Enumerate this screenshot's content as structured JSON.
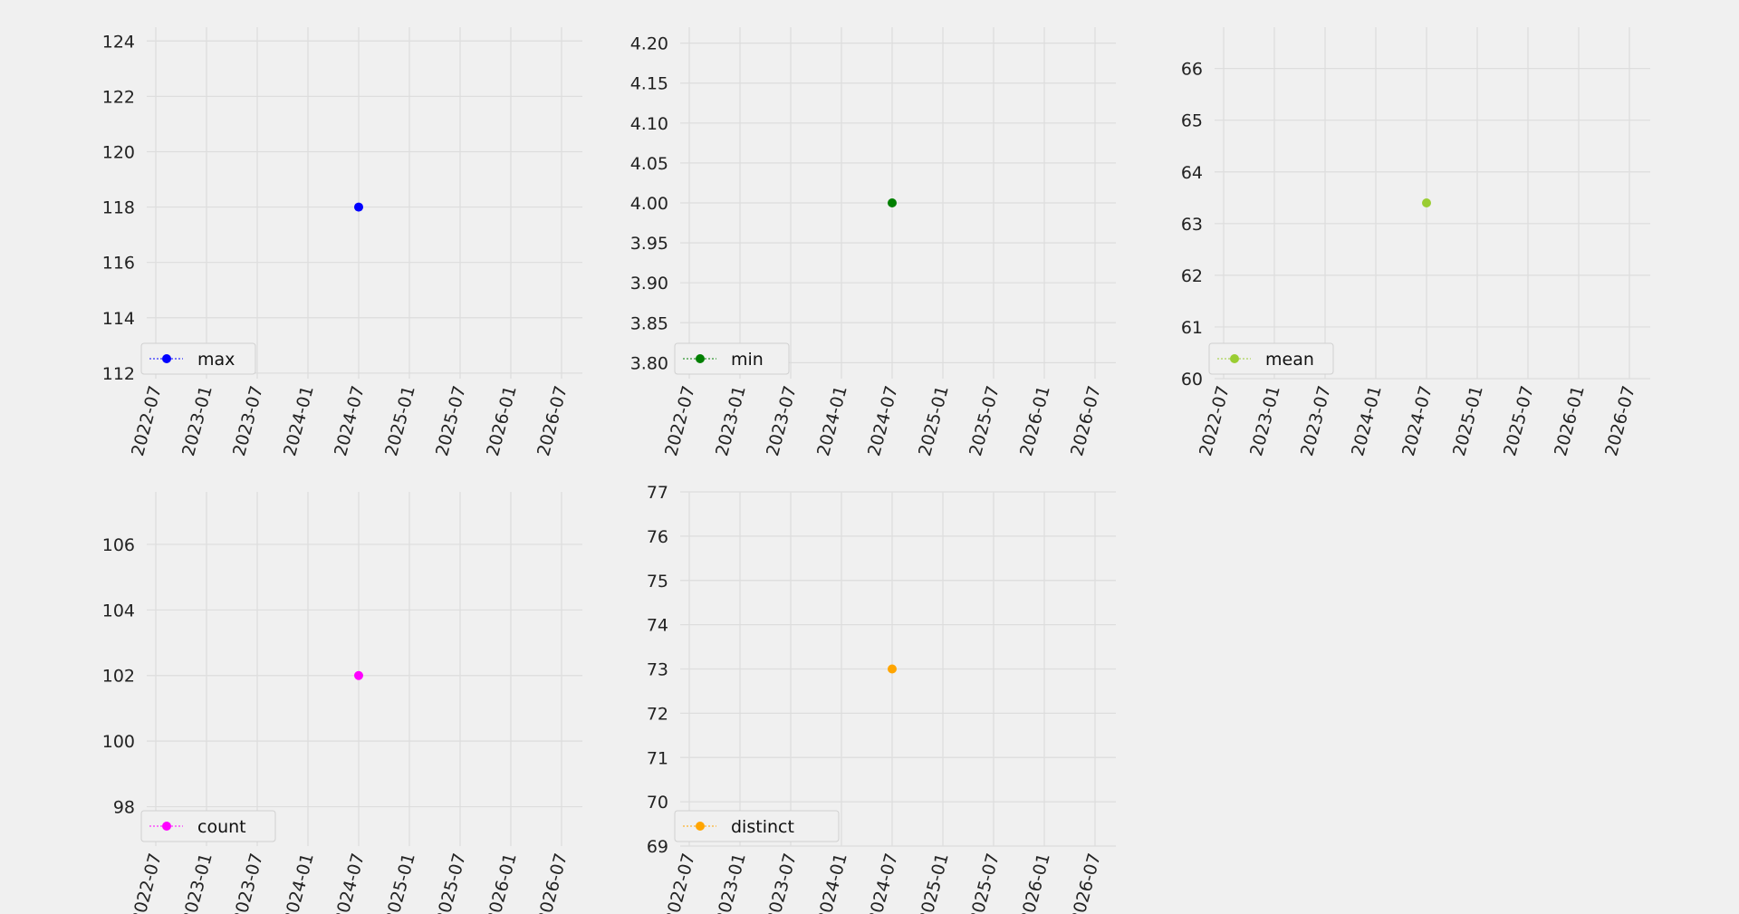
{
  "chart_data": [
    {
      "type": "scatter",
      "x_dates": [
        "2022-07",
        "2023-01",
        "2023-07",
        "2024-01",
        "2024-07",
        "2025-01",
        "2025-07",
        "2026-01",
        "2026-07"
      ],
      "series": [
        {
          "name": "max",
          "color": "#0000ff",
          "x": [
            "2024-07"
          ],
          "values": [
            118
          ]
        }
      ],
      "yticks": [
        112,
        114,
        116,
        118,
        120,
        122,
        124
      ],
      "ylim": [
        111.8,
        124.5
      ],
      "legend": "lower-left",
      "grid": true
    },
    {
      "type": "scatter",
      "x_dates": [
        "2022-07",
        "2023-01",
        "2023-07",
        "2024-01",
        "2024-07",
        "2025-01",
        "2025-07",
        "2026-01",
        "2026-07"
      ],
      "series": [
        {
          "name": "min",
          "color": "#007f00",
          "x": [
            "2024-07"
          ],
          "values": [
            4.0
          ]
        }
      ],
      "yticks": [
        "3.80",
        "3.85",
        "3.90",
        "3.95",
        "4.00",
        "4.05",
        "4.10",
        "4.15",
        "4.20"
      ],
      "ylim": [
        3.78,
        4.22
      ],
      "legend": "lower-left",
      "grid": true
    },
    {
      "type": "scatter",
      "x_dates": [
        "2022-07",
        "2023-01",
        "2023-07",
        "2024-01",
        "2024-07",
        "2025-01",
        "2025-07",
        "2026-01",
        "2026-07"
      ],
      "series": [
        {
          "name": "mean",
          "color": "#9acd32",
          "x": [
            "2024-07"
          ],
          "values": [
            63.4
          ]
        }
      ],
      "yticks": [
        60,
        61,
        62,
        63,
        64,
        65,
        66
      ],
      "ylim": [
        60,
        66.8
      ],
      "legend": "lower-left",
      "grid": true
    },
    {
      "type": "scatter",
      "x_dates": [
        "2022-07",
        "2023-01",
        "2023-07",
        "2024-01",
        "2024-07",
        "2025-01",
        "2025-07",
        "2026-01",
        "2026-07"
      ],
      "series": [
        {
          "name": "count",
          "color": "#ff00ff",
          "x": [
            "2024-07"
          ],
          "values": [
            102
          ]
        }
      ],
      "yticks": [
        98,
        100,
        102,
        104,
        106
      ],
      "ylim": [
        96.8,
        107.6
      ],
      "legend": "lower-left",
      "grid": true
    },
    {
      "type": "scatter",
      "x_dates": [
        "2022-07",
        "2023-01",
        "2023-07",
        "2024-01",
        "2024-07",
        "2025-01",
        "2025-07",
        "2026-01",
        "2026-07"
      ],
      "series": [
        {
          "name": "distinct",
          "color": "#ffa500",
          "x": [
            "2024-07"
          ],
          "values": [
            73
          ]
        }
      ],
      "yticks": [
        69,
        70,
        71,
        72,
        73,
        74,
        75,
        76,
        77
      ],
      "ylim": [
        69,
        77
      ],
      "legend": "lower-left",
      "grid": true
    }
  ]
}
